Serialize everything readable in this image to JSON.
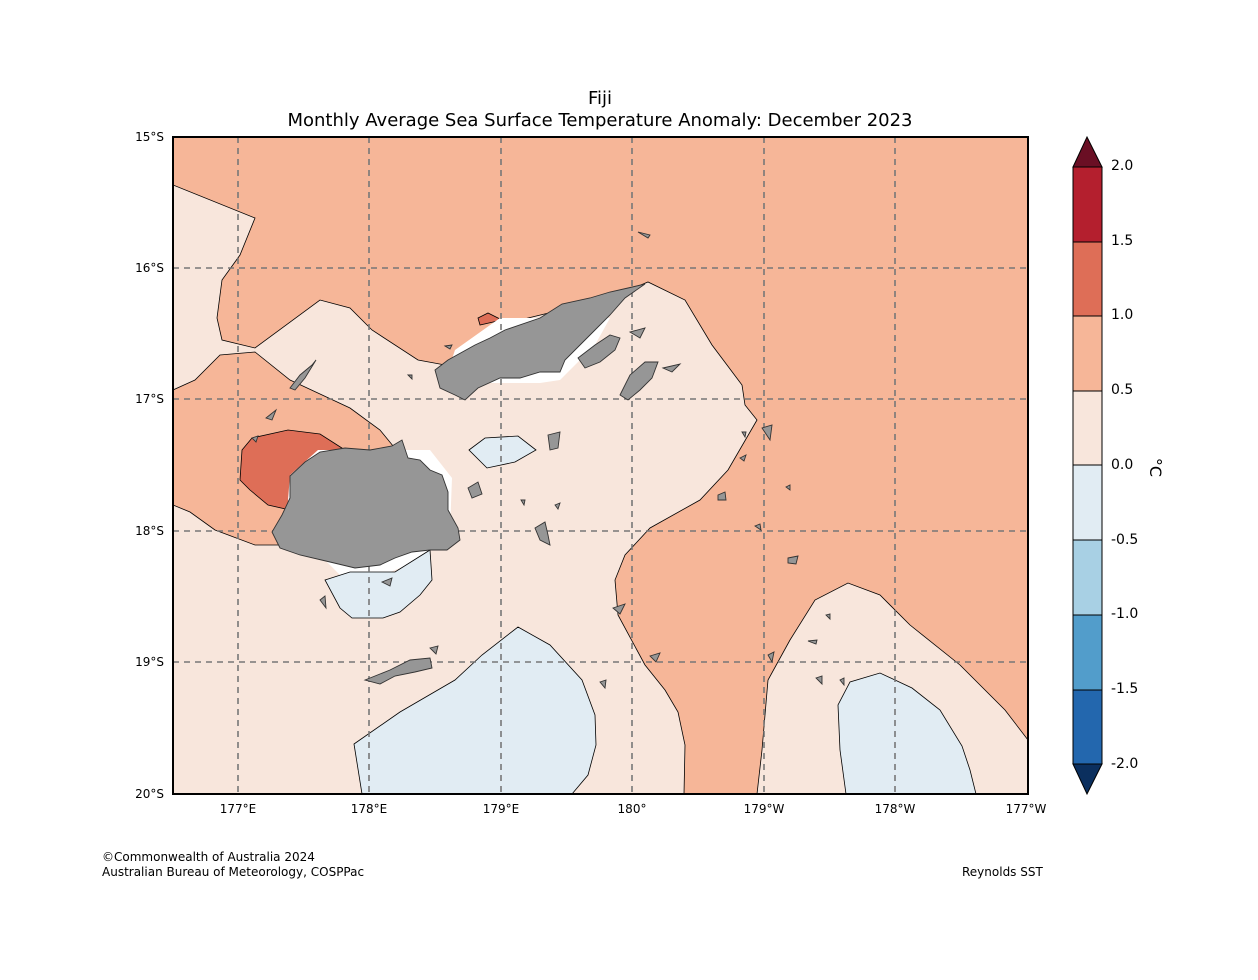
{
  "title": {
    "line1": "Fiji",
    "line2": "Monthly Average Sea Surface Temperature Anomaly: December 2023"
  },
  "latitude_ticks": [
    "15°S",
    "16°S",
    "17°S",
    "18°S",
    "19°S",
    "20°S"
  ],
  "longitude_ticks": [
    "177°E",
    "178°E",
    "179°E",
    "180°",
    "179°W",
    "178°W",
    "177°W"
  ],
  "colorbar": {
    "unit": "°C",
    "ticks": [
      "2.0",
      "1.5",
      "1.0",
      "0.5",
      "0.0",
      "-0.5",
      "-1.0",
      "-1.5",
      "-2.0"
    ],
    "colors": [
      "#6a0f24",
      "#b41f2e",
      "#de6e57",
      "#f6b698",
      "#f8e6dc",
      "#e1ecf3",
      "#a8d0e4",
      "#529dcb",
      "#2367ae",
      "#0b2f5e"
    ]
  },
  "land_color": "#969696",
  "credit": {
    "line1": "©Commonwealth of Australia 2024",
    "line2": "Australian Bureau of Meteorology, COSPPac",
    "source": "Reynolds SST"
  }
}
